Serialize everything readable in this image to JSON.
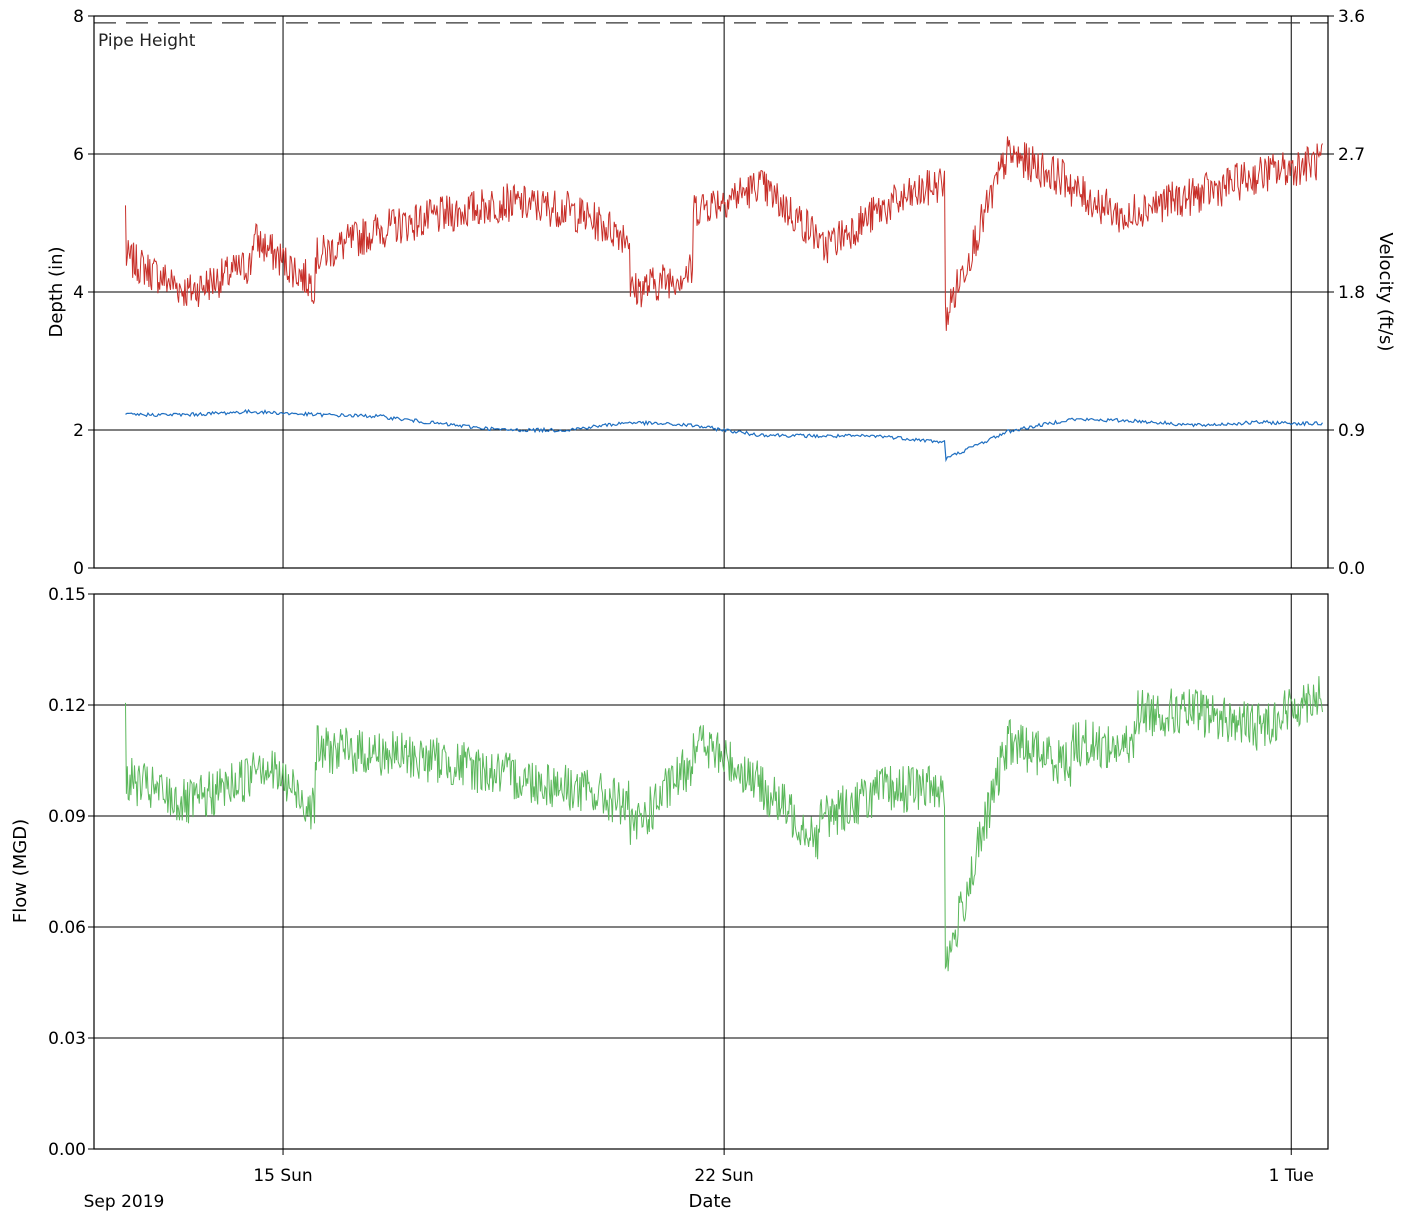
{
  "chart_data": [
    {
      "type": "line",
      "panel": "depth-velocity",
      "title": "",
      "ylabel": "Depth (in)",
      "y2label": "Velocity (ft/s)",
      "ylim": [
        0,
        8
      ],
      "y2lim": [
        0.0,
        3.6
      ],
      "yticks": [
        "0",
        "2",
        "4",
        "6",
        "8"
      ],
      "y2ticks": [
        "0.0",
        "0.9",
        "1.8",
        "2.7",
        "3.6"
      ],
      "reference_lines": [
        {
          "label": "Pipe Height",
          "y": 7.9
        }
      ],
      "series": [
        {
          "name": "",
          "axis": "left",
          "color": "#c8302a",
          "x": [
            "2019-09-12",
            "2019-09-12",
            "2019-09-13",
            "2019-09-14",
            "2019-09-14",
            "2019-09-15",
            "2019-09-15",
            "2019-09-16",
            "2019-09-17",
            "2019-09-18",
            "2019-09-19",
            "2019-09-20",
            "2019-09-20",
            "2019-09-21",
            "2019-09-21",
            "2019-09-22",
            "2019-09-22",
            "2019-09-23",
            "2019-09-23",
            "2019-09-24",
            "2019-09-25",
            "2019-09-25",
            "2019-09-25",
            "2019-09-26",
            "2019-09-27",
            "2019-09-27",
            "2019-09-28",
            "2019-09-28",
            "2019-09-29",
            "2019-09-30",
            "2019-10-01",
            "2019-10-01"
          ],
          "y": [
            5.2,
            4.5,
            4.0,
            4.4,
            4.8,
            4.1,
            4.5,
            4.9,
            5.1,
            5.3,
            5.2,
            4.8,
            4.0,
            4.3,
            5.2,
            5.5,
            5.6,
            4.8,
            4.6,
            5.2,
            5.6,
            5.5,
            3.6,
            6.0,
            5.6,
            5.5,
            5.0,
            5.2,
            5.4,
            5.7,
            5.9,
            6.0
          ]
        },
        {
          "name": "",
          "axis": "right",
          "color": "#1f6fc1",
          "x": [
            "2019-09-12",
            "2019-09-13",
            "2019-09-14",
            "2019-09-15",
            "2019-09-16",
            "2019-09-17",
            "2019-09-18",
            "2019-09-19",
            "2019-09-20",
            "2019-09-21",
            "2019-09-22",
            "2019-09-23",
            "2019-09-24",
            "2019-09-25",
            "2019-09-25",
            "2019-09-26",
            "2019-09-27",
            "2019-09-28",
            "2019-09-29",
            "2019-09-30",
            "2019-10-01"
          ],
          "y": [
            1.0,
            1.0,
            1.02,
            1.0,
            0.99,
            0.94,
            0.9,
            0.9,
            0.95,
            0.93,
            0.87,
            0.86,
            0.86,
            0.82,
            0.71,
            0.89,
            0.97,
            0.96,
            0.93,
            0.95,
            0.94
          ]
        }
      ],
      "x_ticks": [
        "15 Sun",
        "22 Sun",
        "1 Tue"
      ]
    },
    {
      "type": "line",
      "panel": "flow",
      "title": "",
      "ylabel": "Flow (MGD)",
      "xlabel": "Date",
      "ylim": [
        0.0,
        0.15
      ],
      "yticks": [
        "0.00",
        "0.03",
        "0.06",
        "0.09",
        "0.12",
        "0.15"
      ],
      "x_ticks": [
        "15 Sun",
        "22 Sun",
        "1 Tue"
      ],
      "x_start_label": "Sep 2019",
      "series": [
        {
          "name": "",
          "color": "#5cb85c",
          "x": [
            "2019-09-12",
            "2019-09-12",
            "2019-09-13",
            "2019-09-14",
            "2019-09-14",
            "2019-09-15",
            "2019-09-15",
            "2019-09-16",
            "2019-09-17",
            "2019-09-18",
            "2019-09-19",
            "2019-09-20",
            "2019-09-20",
            "2019-09-21",
            "2019-09-21",
            "2019-09-22",
            "2019-09-22",
            "2019-09-23",
            "2019-09-23",
            "2019-09-24",
            "2019-09-25",
            "2019-09-25",
            "2019-09-25",
            "2019-09-26",
            "2019-09-27",
            "2019-09-27",
            "2019-09-28",
            "2019-09-28",
            "2019-09-29",
            "2019-09-30",
            "2019-10-01",
            "2019-10-01"
          ],
          "y": [
            0.12,
            0.1,
            0.093,
            0.101,
            0.107,
            0.092,
            0.108,
            0.107,
            0.105,
            0.101,
            0.098,
            0.093,
            0.085,
            0.105,
            0.111,
            0.1,
            0.099,
            0.084,
            0.089,
            0.097,
            0.098,
            0.09,
            0.048,
            0.11,
            0.104,
            0.11,
            0.108,
            0.118,
            0.118,
            0.114,
            0.124,
            0.127
          ]
        }
      ]
    }
  ]
}
